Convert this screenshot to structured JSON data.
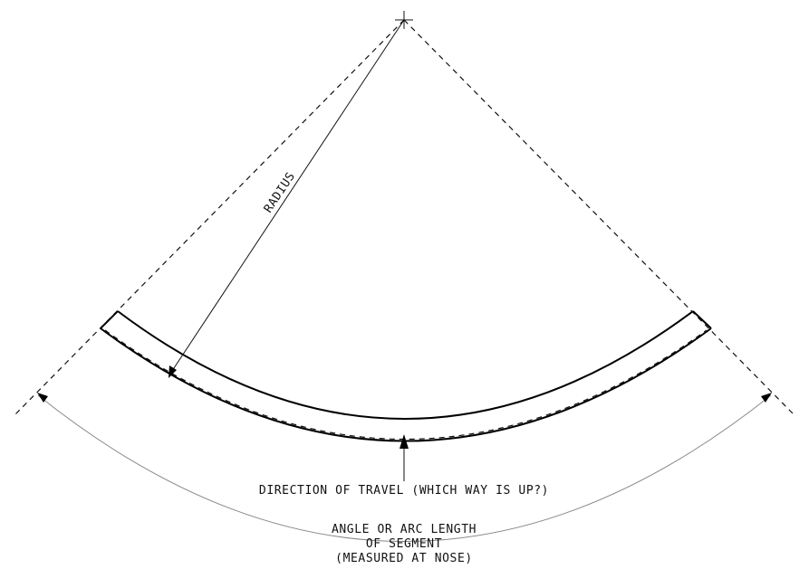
{
  "labels": {
    "radius": "RADIUS",
    "direction": "DIRECTION OF TRAVEL (WHICH WAY IS UP?)",
    "angle_line1": "ANGLE OR ARC LENGTH",
    "angle_line2": "OF SEGMENT",
    "angle_line3": "(MEASURED AT NOSE)"
  },
  "colors": {
    "line": "#000000",
    "dimension": "#888888",
    "background": "#ffffff"
  }
}
